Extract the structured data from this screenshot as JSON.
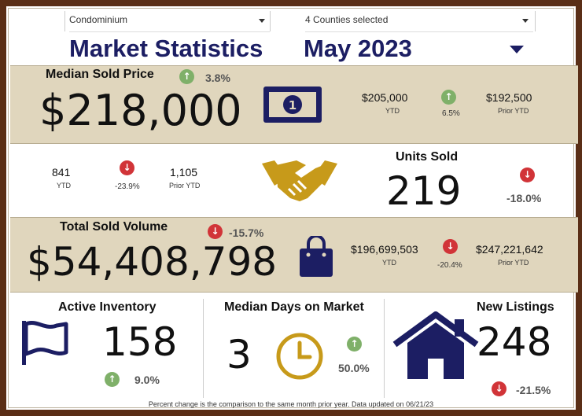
{
  "filters": {
    "property_type": "Condominium",
    "counties": "4 Counties selected"
  },
  "header": {
    "title": "Market Statistics",
    "period": "May 2023"
  },
  "median_price": {
    "label": "Median Sold Price",
    "value": "$218,000",
    "change": "3.8%",
    "ytd_value": "$205,000",
    "ytd_label": "YTD",
    "ytd_change": "6.5%",
    "prior_ytd_value": "$192,500",
    "prior_ytd_label": "Prior YTD"
  },
  "units_sold": {
    "label": "Units Sold",
    "value": "219",
    "change": "-18.0%",
    "ytd_value": "841",
    "ytd_label": "YTD",
    "ytd_change": "-23.9%",
    "prior_ytd_value": "1,105",
    "prior_ytd_label": "Prior YTD"
  },
  "total_volume": {
    "label": "Total Sold Volume",
    "value": "$54,408,798",
    "change": "-15.7%",
    "ytd_value": "$196,699,503",
    "ytd_label": "YTD",
    "ytd_change": "-20.4%",
    "prior_ytd_value": "$247,221,642",
    "prior_ytd_label": "Prior YTD"
  },
  "active_inventory": {
    "label": "Active Inventory",
    "value": "158",
    "change": "9.0%"
  },
  "days_on_market": {
    "label": "Median Days on Market",
    "value": "3",
    "change": "50.0%"
  },
  "new_listings": {
    "label": "New Listings",
    "value": "248",
    "change": "-21.5%"
  },
  "footer_note": "Percent change is the comparison to the same month prior year. Data updated on 06/21/23",
  "colors": {
    "navy": "#1c1e63",
    "gold": "#c79a1a",
    "band": "#e0d6bd",
    "up": "#7fb069",
    "down": "#d13438",
    "border": "#5a2e16"
  },
  "icons": {
    "up": "arrow-up-icon",
    "down": "arrow-down-icon",
    "money": "dollar-bill-icon",
    "handshake": "handshake-icon",
    "bag": "shopping-bag-icon",
    "flag": "flag-icon",
    "clock": "clock-icon",
    "house": "house-icon"
  }
}
